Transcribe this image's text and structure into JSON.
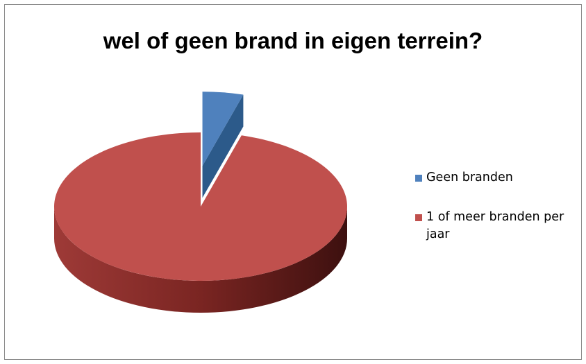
{
  "chart_data": {
    "type": "pie",
    "title": "wel of geen brand in eigen terrein?",
    "three_d": true,
    "exploded": [
      "Geen branden"
    ],
    "legend_position": "right",
    "slices": [
      {
        "label": "Geen branden",
        "value": 4.5,
        "color": "#4f81bd"
      },
      {
        "label": "1 of meer branden per jaar",
        "value": 95.5,
        "color": "#c0504d"
      }
    ]
  }
}
